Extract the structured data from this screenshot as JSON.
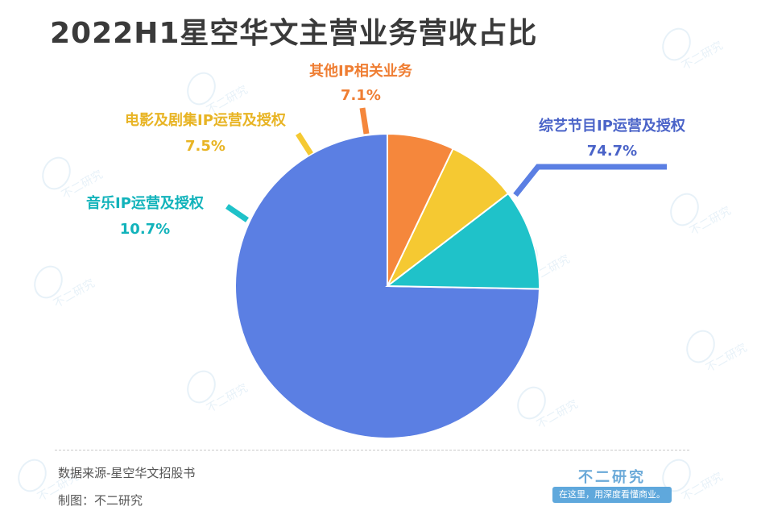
{
  "title": "2022H1星空华文主营业务营收占比",
  "footer": {
    "source": "数据来源-星空华文招股书",
    "maker": "制图：不二研究",
    "brand": "不二研究",
    "slogan": "在这里，用深度看懂商业。"
  },
  "watermark_text": "不二研究",
  "chart_data": {
    "type": "pie",
    "categories": [
      "综艺节目IP运营及授权",
      "音乐IP运营及授权",
      "电影及剧集IP运营及授权",
      "其他IP相关业务"
    ],
    "values": [
      74.7,
      10.7,
      7.5,
      7.1
    ],
    "value_labels": [
      "74.7%",
      "10.7%",
      "7.5%",
      "7.1%"
    ],
    "colors": [
      "#5b7fe3",
      "#1fc2c9",
      "#f5c932",
      "#f5873c"
    ],
    "label_colors": [
      "#4a63c8",
      "#12b3bb",
      "#e8b424",
      "#ef7e33"
    ],
    "start": "12 o'clock",
    "direction": "counterclockwise"
  }
}
